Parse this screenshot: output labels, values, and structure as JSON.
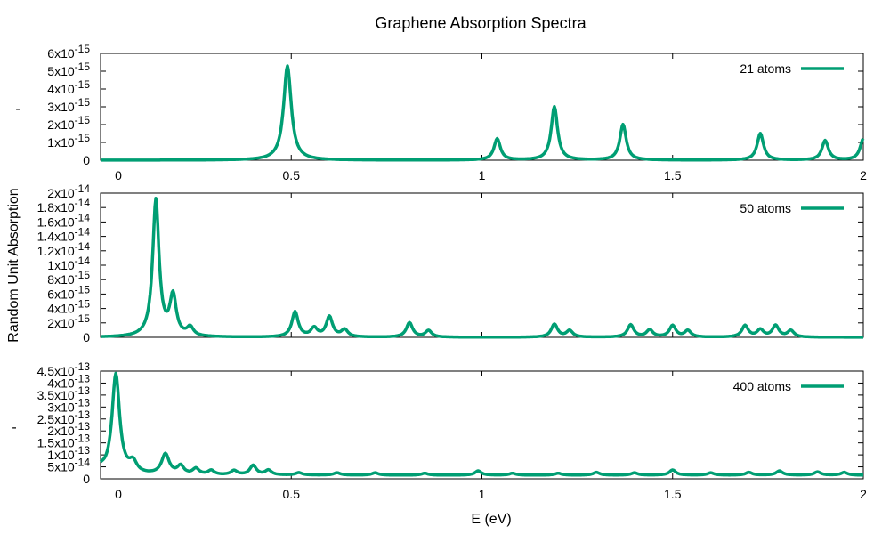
{
  "title": "Graphene Absorption Spectra",
  "xlabel": "E (eV)",
  "ylabel": "Random Unit Absorption",
  "side_markers": [
    "-",
    "-"
  ],
  "line_color": "#009e73",
  "chart_data": [
    {
      "type": "line",
      "legend_position": "top-right",
      "xlim": [
        0,
        2
      ],
      "ylim": [
        0,
        6e-15
      ],
      "x_ticks": [
        "0",
        "0.5",
        "1",
        "1.5",
        "2"
      ],
      "y_ticks": [
        {
          "mant": "0",
          "exp": ""
        },
        {
          "mant": "1x10",
          "exp": "-15"
        },
        {
          "mant": "2x10",
          "exp": "-15"
        },
        {
          "mant": "3x10",
          "exp": "-15"
        },
        {
          "mant": "4x10",
          "exp": "-15"
        },
        {
          "mant": "5x10",
          "exp": "-15"
        },
        {
          "mant": "6x10",
          "exp": "-15"
        }
      ],
      "series": [
        {
          "name": "21 atoms",
          "baseline": 0,
          "peaks": [
            {
              "x": 0.49,
              "y": 5.3e-15,
              "w": 0.012
            },
            {
              "x": 1.04,
              "y": 1.2e-15,
              "w": 0.01
            },
            {
              "x": 1.19,
              "y": 3e-15,
              "w": 0.01
            },
            {
              "x": 1.37,
              "y": 2e-15,
              "w": 0.01
            },
            {
              "x": 1.73,
              "y": 1.5e-15,
              "w": 0.01
            },
            {
              "x": 1.9,
              "y": 1.1e-15,
              "w": 0.01
            },
            {
              "x": 2.0,
              "y": 1.2e-15,
              "w": 0.01
            }
          ]
        }
      ]
    },
    {
      "type": "line",
      "legend_position": "top-right",
      "xlim": [
        0,
        2
      ],
      "ylim": [
        0,
        2e-14
      ],
      "x_ticks": [],
      "y_ticks": [
        {
          "mant": "0",
          "exp": ""
        },
        {
          "mant": "2x10",
          "exp": "-15"
        },
        {
          "mant": "4x10",
          "exp": "-15"
        },
        {
          "mant": "6x10",
          "exp": "-15"
        },
        {
          "mant": "8x10",
          "exp": "-15"
        },
        {
          "mant": "1x10",
          "exp": "-14"
        },
        {
          "mant": "1.2x10",
          "exp": "-14"
        },
        {
          "mant": "1.4x10",
          "exp": "-14"
        },
        {
          "mant": "1.6x10",
          "exp": "-14"
        },
        {
          "mant": "1.8x10",
          "exp": "-14"
        },
        {
          "mant": "2x10",
          "exp": "-14"
        }
      ],
      "series": [
        {
          "name": "50 atoms",
          "baseline": 0,
          "peaks": [
            {
              "x": 0.145,
              "y": 1.9e-14,
              "w": 0.01
            },
            {
              "x": 0.19,
              "y": 5.5e-15,
              "w": 0.01
            },
            {
              "x": 0.235,
              "y": 1.2e-15,
              "w": 0.01
            },
            {
              "x": 0.51,
              "y": 3.5e-15,
              "w": 0.01
            },
            {
              "x": 0.56,
              "y": 1.2e-15,
              "w": 0.01
            },
            {
              "x": 0.6,
              "y": 2.8e-15,
              "w": 0.01
            },
            {
              "x": 0.64,
              "y": 1e-15,
              "w": 0.01
            },
            {
              "x": 0.81,
              "y": 2e-15,
              "w": 0.01
            },
            {
              "x": 0.86,
              "y": 9e-16,
              "w": 0.01
            },
            {
              "x": 1.19,
              "y": 1.8e-15,
              "w": 0.01
            },
            {
              "x": 1.23,
              "y": 9e-16,
              "w": 0.01
            },
            {
              "x": 1.39,
              "y": 1.7e-15,
              "w": 0.01
            },
            {
              "x": 1.44,
              "y": 1e-15,
              "w": 0.01
            },
            {
              "x": 1.5,
              "y": 1.6e-15,
              "w": 0.01
            },
            {
              "x": 1.54,
              "y": 9e-16,
              "w": 0.01
            },
            {
              "x": 1.69,
              "y": 1.6e-15,
              "w": 0.01
            },
            {
              "x": 1.73,
              "y": 1e-15,
              "w": 0.01
            },
            {
              "x": 1.77,
              "y": 1.6e-15,
              "w": 0.01
            },
            {
              "x": 1.81,
              "y": 9e-16,
              "w": 0.01
            }
          ]
        }
      ]
    },
    {
      "type": "line",
      "legend_position": "top-right",
      "xlim": [
        0,
        2
      ],
      "ylim": [
        0,
        4.5e-13
      ],
      "x_ticks": [
        "0",
        "0.5",
        "1",
        "1.5",
        "2"
      ],
      "y_ticks": [
        {
          "mant": "0",
          "exp": ""
        },
        {
          "mant": "5x10",
          "exp": "-14"
        },
        {
          "mant": "1x10",
          "exp": "-13"
        },
        {
          "mant": "1.5x10",
          "exp": "-13"
        },
        {
          "mant": "2x10",
          "exp": "-13"
        },
        {
          "mant": "2.5x10",
          "exp": "-13"
        },
        {
          "mant": "3x10",
          "exp": "-13"
        },
        {
          "mant": "3.5x10",
          "exp": "-13"
        },
        {
          "mant": "4x10",
          "exp": "-13"
        },
        {
          "mant": "4.5x10",
          "exp": "-13"
        }
      ],
      "series": [
        {
          "name": "400 atoms",
          "baseline": 1.5e-14,
          "peaks": [
            {
              "x": 0.0,
              "y": 2e-14,
              "w": 0.012
            },
            {
              "x": 0.04,
              "y": 4.2e-13,
              "w": 0.012
            },
            {
              "x": 0.085,
              "y": 4.5e-14,
              "w": 0.012
            },
            {
              "x": 0.17,
              "y": 8.5e-14,
              "w": 0.012
            },
            {
              "x": 0.21,
              "y": 3.5e-14,
              "w": 0.01
            },
            {
              "x": 0.25,
              "y": 2.5e-14,
              "w": 0.01
            },
            {
              "x": 0.29,
              "y": 1.8e-14,
              "w": 0.01
            },
            {
              "x": 0.35,
              "y": 1.8e-14,
              "w": 0.01
            },
            {
              "x": 0.4,
              "y": 4e-14,
              "w": 0.01
            },
            {
              "x": 0.44,
              "y": 2e-14,
              "w": 0.01
            },
            {
              "x": 0.52,
              "y": 1e-14,
              "w": 0.01
            },
            {
              "x": 0.62,
              "y": 1e-14,
              "w": 0.01
            },
            {
              "x": 0.72,
              "y": 1e-14,
              "w": 0.01
            },
            {
              "x": 0.85,
              "y": 8e-15,
              "w": 0.01
            },
            {
              "x": 0.99,
              "y": 1.8e-14,
              "w": 0.01
            },
            {
              "x": 1.08,
              "y": 8e-15,
              "w": 0.01
            },
            {
              "x": 1.2,
              "y": 8e-15,
              "w": 0.01
            },
            {
              "x": 1.3,
              "y": 1.2e-14,
              "w": 0.01
            },
            {
              "x": 1.4,
              "y": 1e-14,
              "w": 0.01
            },
            {
              "x": 1.5,
              "y": 2.2e-14,
              "w": 0.01
            },
            {
              "x": 1.6,
              "y": 1e-14,
              "w": 0.01
            },
            {
              "x": 1.7,
              "y": 1.2e-14,
              "w": 0.01
            },
            {
              "x": 1.78,
              "y": 1.8e-14,
              "w": 0.01
            },
            {
              "x": 1.88,
              "y": 1.4e-14,
              "w": 0.01
            },
            {
              "x": 1.95,
              "y": 1.2e-14,
              "w": 0.01
            }
          ]
        }
      ]
    }
  ]
}
